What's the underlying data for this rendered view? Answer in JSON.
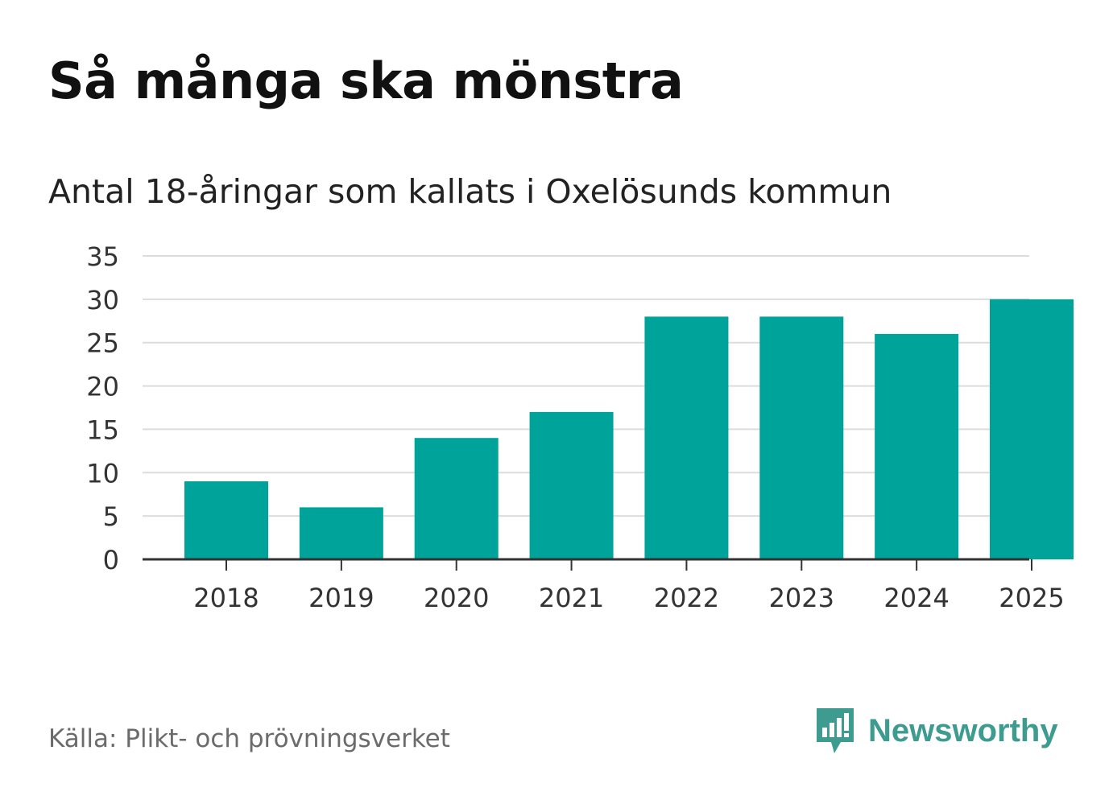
{
  "title": "Så många ska mönstra",
  "subtitle": "Antal 18-åringar som kallats i Oxelösunds kommun",
  "source": "Källa: Plikt- och prövningsverket",
  "brand": {
    "name": "Newsworthy",
    "icon": "newsworthy-logo-icon"
  },
  "colors": {
    "bar": "#00a39a",
    "grid": "#dcdcdc",
    "axis": "#333333",
    "brand": "#3d9b8f"
  },
  "chart_data": {
    "type": "bar",
    "title": "Så många ska mönstra",
    "subtitle": "Antal 18-åringar som kallats i Oxelösunds kommun",
    "xlabel": "",
    "ylabel": "",
    "categories": [
      "2018",
      "2019",
      "2020",
      "2021",
      "2022",
      "2023",
      "2024",
      "2025"
    ],
    "values": [
      9,
      6,
      14,
      17,
      28,
      28,
      26,
      30
    ],
    "ylim": [
      0,
      35
    ],
    "yticks": [
      0,
      5,
      10,
      15,
      20,
      25,
      30,
      35
    ],
    "grid": true
  }
}
